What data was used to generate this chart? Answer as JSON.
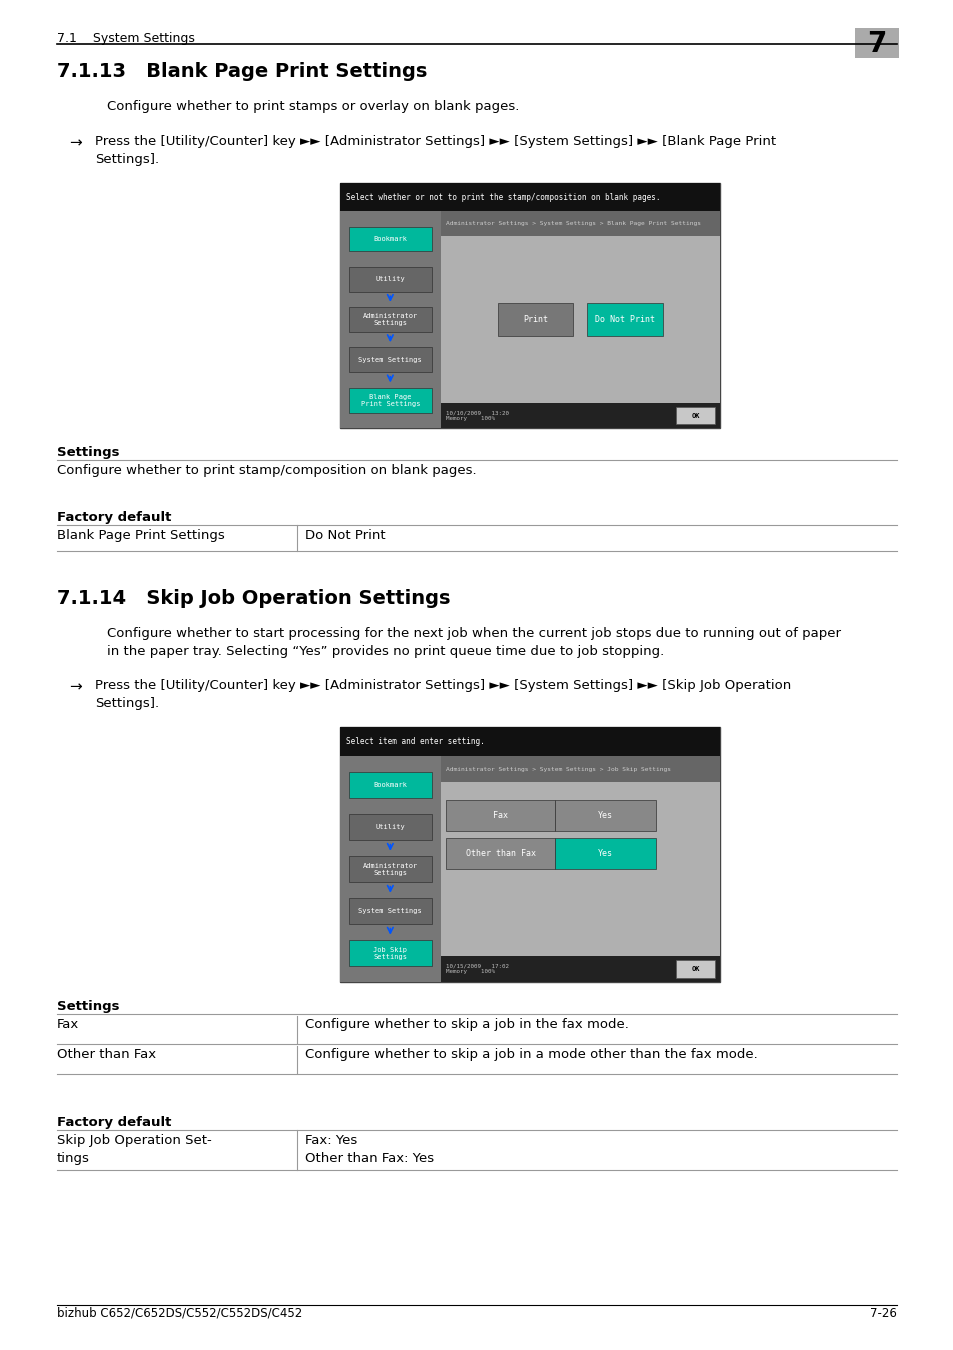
{
  "page_bg": "#ffffff",
  "header_text": "7.1    System Settings",
  "header_number": "7",
  "header_number_bg": "#aaaaaa",
  "footer_text": "bizhub C652/C652DS/C552/C552DS/C452",
  "footer_page": "7-26",
  "section1_title": "7.1.13   Blank Page Print Settings",
  "section1_desc": "Configure whether to print stamps or overlay on blank pages.",
  "section1_instruction_line1": "Press the [Utility/Counter] key ►► [Administrator Settings] ►► [System Settings] ►► [Blank Page Print",
  "section1_instruction_line2": "Settings].",
  "screen1_top_text": "Select whether or not to print the stamp/composition on blank pages.",
  "screen1_breadcrumb": "Administrator Settings > System Settings > Blank Page Print Settings",
  "screen1_sidebar_buttons": [
    "Bookmark",
    "Utility",
    "Administrator\nSettings",
    "System Settings",
    "Blank Page\nPrint Settings"
  ],
  "screen1_bookmark_color": "#00b89c",
  "screen1_active_btn_color": "#00b89c",
  "screen1_inactive_btn_color": "#666666",
  "screen1_btn1": "Print",
  "screen1_btn2": "Do Not Print",
  "screen1_btn1_color": "#808080",
  "screen1_btn2_color": "#00b89c",
  "screen1_footer": "10/10/2009   13:20\nMemory    100%",
  "screen1_ok_btn": "OK",
  "settings1_label": "Settings",
  "settings1_text": "Configure whether to print stamp/composition on blank pages.",
  "factory1_label": "Factory default",
  "factory1_col1": "Blank Page Print Settings",
  "factory1_col2": "Do Not Print",
  "section2_title": "7.1.14   Skip Job Operation Settings",
  "section2_desc1": "Configure whether to start processing for the next job when the current job stops due to running out of paper",
  "section2_desc2": "in the paper tray. Selecting “Yes” provides no print queue time due to job stopping.",
  "section2_instruction_line1": "Press the [Utility/Counter] key ►► [Administrator Settings] ►► [System Settings] ►► [Skip Job Operation",
  "section2_instruction_line2": "Settings].",
  "screen2_top_text": "Select item and enter setting.",
  "screen2_breadcrumb": "Administrator Settings > System Settings > Job Skip Settings",
  "screen2_sidebar_buttons": [
    "Bookmark",
    "Utility",
    "Administrator\nSettings",
    "System Settings",
    "Job Skip\nSettings"
  ],
  "screen2_bookmark_color": "#00b89c",
  "screen2_active_btn_color": "#00b89c",
  "screen2_inactive_btn_color": "#666666",
  "screen2_row1_label": "Fax",
  "screen2_row1_value": "Yes",
  "screen2_row2_label": "Other than Fax",
  "screen2_row2_value": "Yes",
  "screen2_footer": "10/15/2009   17:02\nMemory    100%",
  "screen2_ok_btn": "OK",
  "settings2_label": "Settings",
  "settings2_rows": [
    [
      "Fax",
      "Configure whether to skip a job in the fax mode."
    ],
    [
      "Other than Fax",
      "Configure whether to skip a job in a mode other than the fax mode."
    ]
  ],
  "factory2_label": "Factory default",
  "factory2_col1_line1": "Skip Job Operation Set-",
  "factory2_col1_line2": "tings",
  "factory2_col2_line1": "Fax: Yes",
  "factory2_col2_line2": "Other than Fax: Yes"
}
